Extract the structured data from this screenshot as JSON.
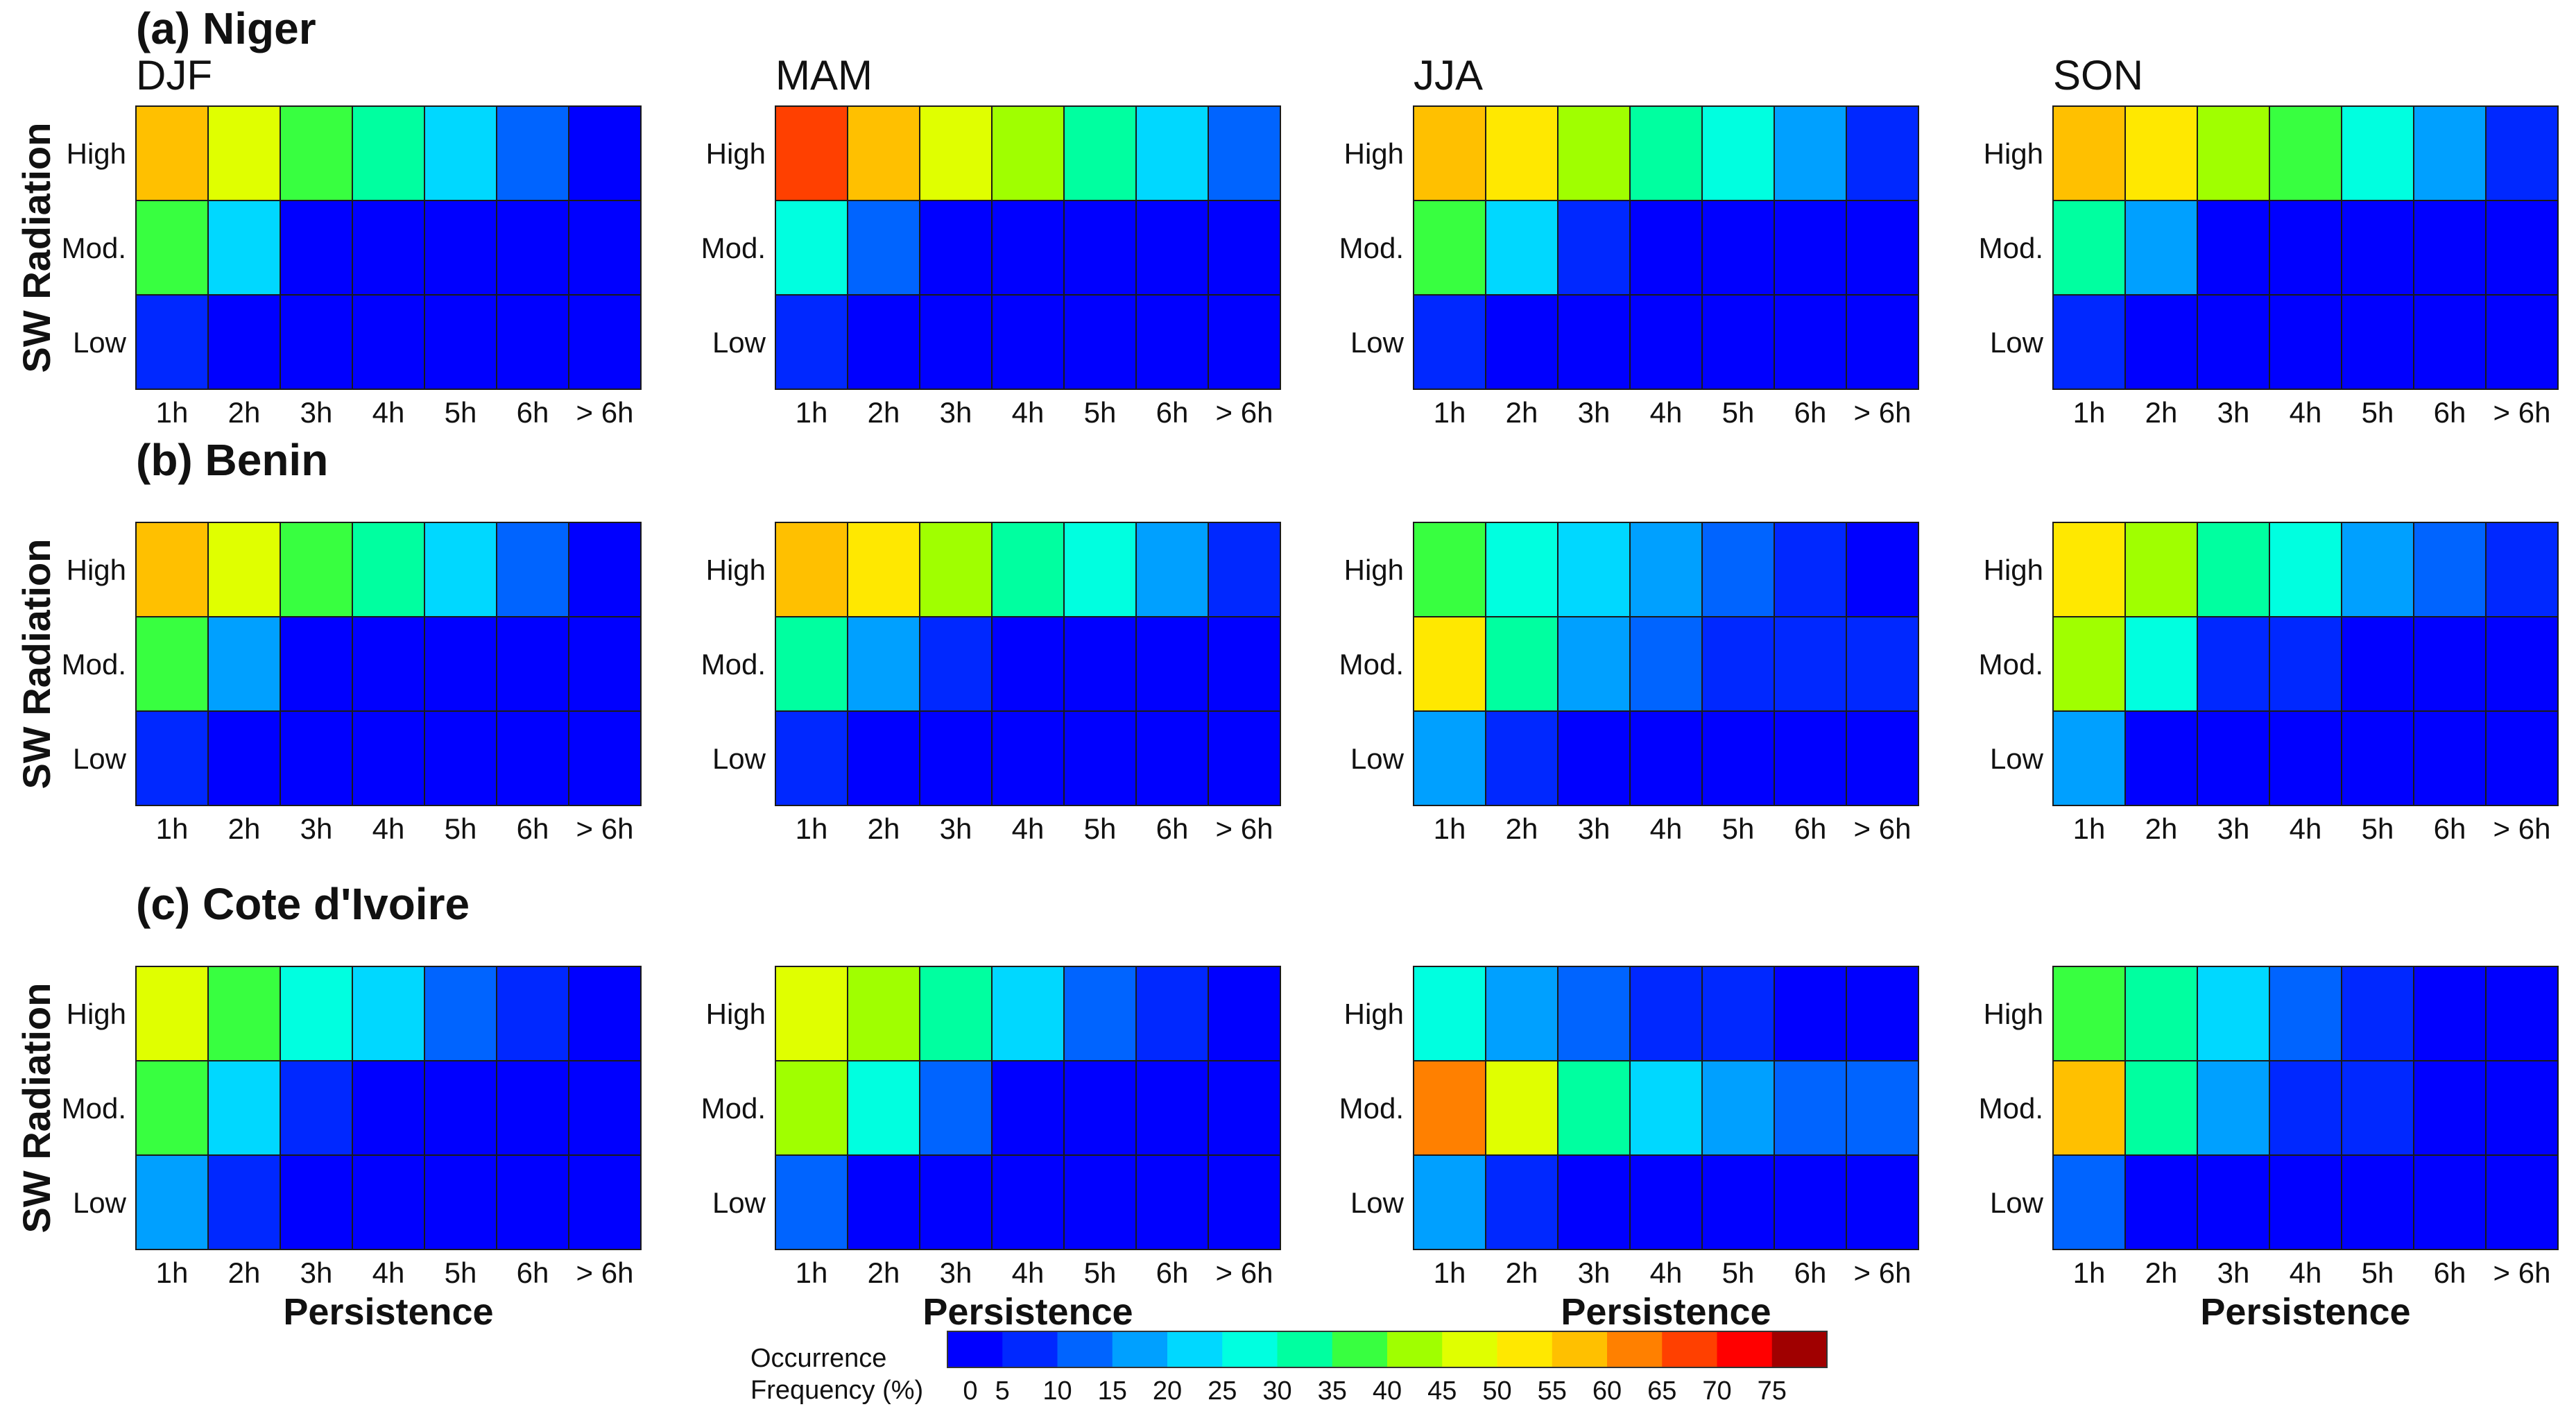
{
  "chart_data": {
    "type": "heatmap",
    "y_axis_title": "SW Radiation",
    "x_axis_title": "Persistence",
    "x_categories": [
      "1h",
      "2h",
      "3h",
      "4h",
      "5h",
      "6h",
      "> 6h"
    ],
    "y_categories": [
      "High",
      "Mod.",
      "Low"
    ],
    "seasons": [
      "DJF",
      "MAM",
      "JJA",
      "SON"
    ],
    "colorbar": {
      "label_line1": "Occurrence",
      "label_line2": "Frequency (%)",
      "range": [
        0,
        80
      ],
      "ticks": [
        "0",
        "5",
        "10",
        "15",
        "20",
        "25",
        "30",
        "35",
        "40",
        "45",
        "50",
        "55",
        "60",
        "65",
        "70",
        "75"
      ],
      "colors": [
        "#0000ff",
        "#0028ff",
        "#0064ff",
        "#00a0ff",
        "#00d8ff",
        "#00ffe0",
        "#00ffa0",
        "#38ff40",
        "#a0ff00",
        "#e0ff00",
        "#ffe800",
        "#ffc000",
        "#ff8000",
        "#ff4000",
        "#ff0000",
        "#a00000"
      ]
    },
    "regions": [
      {
        "title": "(a) Niger",
        "panels": [
          {
            "season": "DJF",
            "values": [
              [
                55,
                45,
                38,
                30,
                23,
                12,
                3
              ],
              [
                36,
                21,
                2,
                1,
                1,
                1,
                1
              ],
              [
                8,
                2,
                1,
                1,
                1,
                1,
                1
              ]
            ]
          },
          {
            "season": "MAM",
            "values": [
              [
                65,
                55,
                47,
                40,
                31,
                23,
                12
              ],
              [
                29,
                12,
                2,
                1,
                1,
                1,
                1
              ],
              [
                7,
                2,
                1,
                1,
                1,
                1,
                1
              ]
            ]
          },
          {
            "season": "JJA",
            "values": [
              [
                57,
                50,
                43,
                32,
                26,
                17,
                9
              ],
              [
                35,
                22,
                5,
                2,
                1,
                1,
                1
              ],
              [
                7,
                2,
                1,
                1,
                1,
                1,
                1
              ]
            ]
          },
          {
            "season": "SON",
            "values": [
              [
                58,
                50,
                43,
                35,
                27,
                17,
                9
              ],
              [
                31,
                18,
                4,
                1,
                1,
                1,
                1
              ],
              [
                6,
                2,
                1,
                1,
                1,
                1,
                1
              ]
            ]
          }
        ]
      },
      {
        "title": "(b) Benin",
        "panels": [
          {
            "season": "DJF",
            "values": [
              [
                55,
                46,
                38,
                30,
                23,
                13,
                3
              ],
              [
                35,
                18,
                2,
                1,
                1,
                1,
                1
              ],
              [
                8,
                2,
                1,
                1,
                1,
                1,
                1
              ]
            ]
          },
          {
            "season": "MAM",
            "values": [
              [
                57,
                50,
                42,
                32,
                25,
                16,
                8
              ],
              [
                32,
                18,
                5,
                1,
                1,
                1,
                1
              ],
              [
                8,
                2,
                1,
                1,
                1,
                1,
                1
              ]
            ]
          },
          {
            "season": "JJA",
            "values": [
              [
                37,
                29,
                24,
                17,
                11,
                7,
                3
              ],
              [
                50,
                33,
                19,
                11,
                8,
                6,
                5
              ],
              [
                16,
                5,
                1,
                1,
                1,
                1,
                1
              ]
            ]
          },
          {
            "season": "SON",
            "values": [
              [
                50,
                43,
                32,
                27,
                19,
                12,
                8
              ],
              [
                41,
                25,
                9,
                5,
                3,
                2,
                1
              ],
              [
                15,
                4,
                1,
                1,
                1,
                1,
                1
              ]
            ]
          }
        ]
      },
      {
        "title": "(c) Cote d'Ivoire",
        "panels": [
          {
            "season": "DJF",
            "values": [
              [
                48,
                39,
                29,
                22,
                14,
                7,
                3
              ],
              [
                37,
                22,
                8,
                2,
                1,
                1,
                1
              ],
              [
                18,
                6,
                1,
                1,
                1,
                1,
                1
              ]
            ]
          },
          {
            "season": "MAM",
            "values": [
              [
                48,
                40,
                31,
                22,
                14,
                7,
                3
              ],
              [
                44,
                26,
                10,
                4,
                1,
                1,
                1
              ],
              [
                11,
                2,
                1,
                1,
                1,
                1,
                1
              ]
            ]
          },
          {
            "season": "JJA",
            "values": [
              [
                27,
                18,
                12,
                8,
                5,
                3,
                2
              ],
              [
                63,
                48,
                31,
                23,
                17,
                13,
                10
              ],
              [
                16,
                5,
                1,
                1,
                1,
                1,
                1
              ]
            ]
          },
          {
            "season": "SON",
            "values": [
              [
                37,
                30,
                21,
                13,
                7,
                3,
                2
              ],
              [
                55,
                33,
                18,
                8,
                5,
                3,
                2
              ],
              [
                12,
                2,
                1,
                1,
                1,
                1,
                1
              ]
            ]
          }
        ]
      }
    ]
  }
}
